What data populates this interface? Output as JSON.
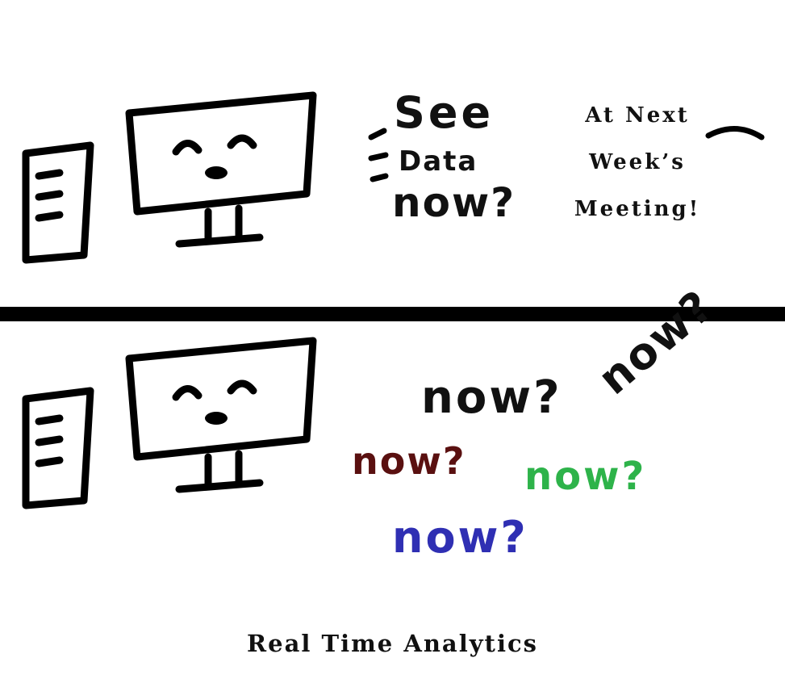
{
  "panel_top": {
    "handwritten_lines": [
      "See",
      "Data",
      "now?"
    ],
    "meeting_lines": [
      "At Next",
      "Week’s",
      "Meeting!"
    ]
  },
  "panel_bottom": {
    "shouts": [
      {
        "text": "now?",
        "color": "#111111"
      },
      {
        "text": "now?",
        "color": "#111111"
      },
      {
        "text": "now?",
        "color": "#5a1010"
      },
      {
        "text": "now?",
        "color": "#2eb34a"
      },
      {
        "text": "now?",
        "color": "#2f2fb3"
      }
    ]
  },
  "caption": "Real Time Analytics",
  "icons": [
    "computer-tower-icon",
    "smiling-monitor-icon"
  ]
}
